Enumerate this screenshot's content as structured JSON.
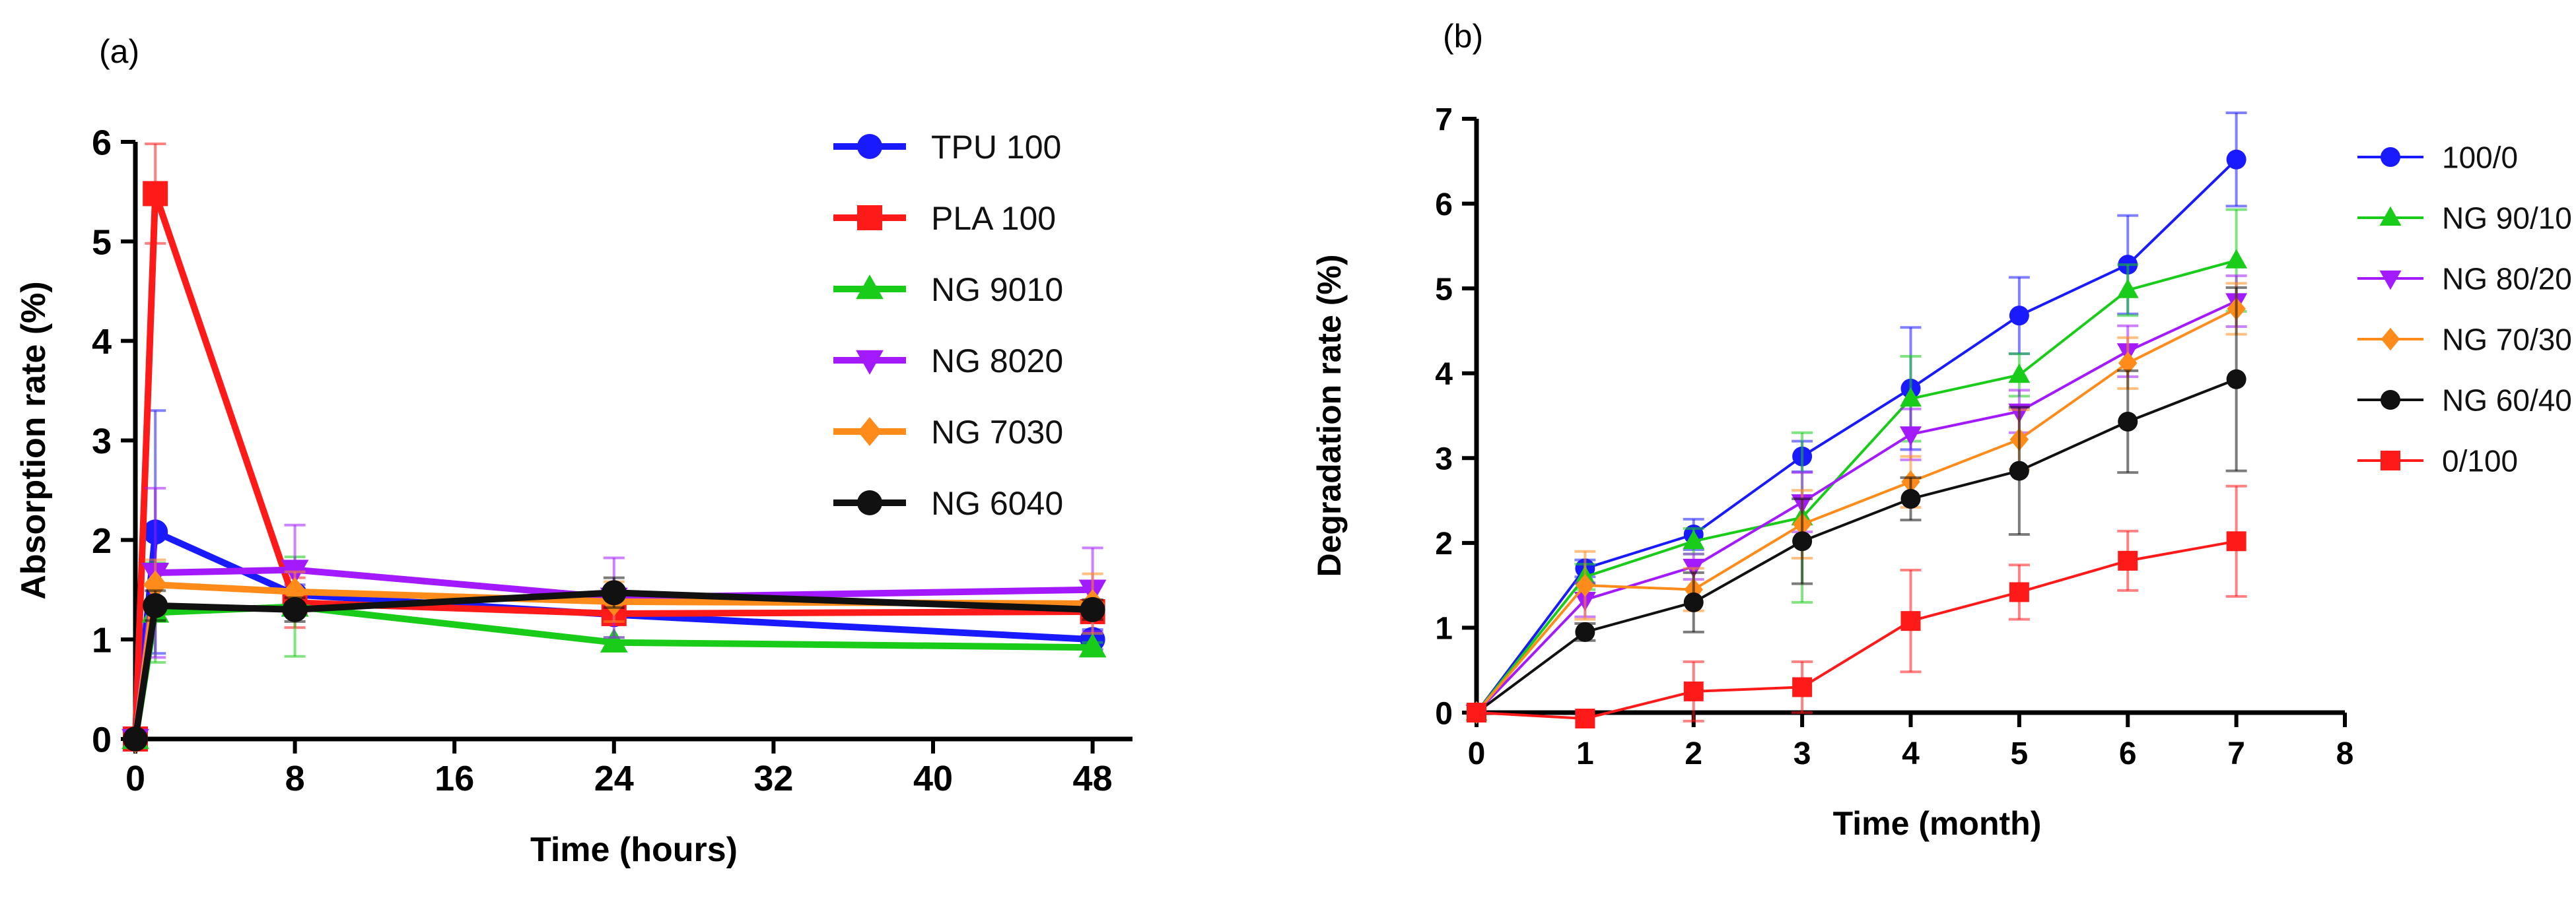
{
  "chart_data": [
    {
      "panel_label": "(a)",
      "type": "line",
      "title": "",
      "xlabel": "Time (hours)",
      "ylabel": "Absorption rate (%)",
      "xlim": [
        0,
        50
      ],
      "ylim": [
        0,
        6
      ],
      "xticks": [
        0,
        8,
        16,
        24,
        32,
        40,
        48
      ],
      "yticks": [
        0,
        1,
        2,
        3,
        4,
        5,
        6
      ],
      "x": [
        0,
        1,
        8,
        24,
        48
      ],
      "grid": false,
      "legend_position": "right",
      "series": [
        {
          "name": "TPU 100",
          "color": "#1a1aff",
          "marker": "circle",
          "values": [
            0,
            2.08,
            1.45,
            1.25,
            1.0
          ],
          "errors": [
            0,
            1.22,
            0.1,
            0.1,
            0.1
          ]
        },
        {
          "name": "PLA 100",
          "color": "#ff1a1a",
          "marker": "square",
          "values": [
            0,
            5.48,
            1.37,
            1.26,
            1.28
          ],
          "errors": [
            0,
            0.5,
            0.25,
            0.1,
            0.1
          ]
        },
        {
          "name": "NG 9010",
          "color": "#1acc1a",
          "marker": "triangle-up",
          "values": [
            0,
            1.27,
            1.33,
            0.97,
            0.92
          ],
          "errors": [
            0,
            0.5,
            0.5,
            0.05,
            0.05
          ]
        },
        {
          "name": "NG 8020",
          "color": "#a31aff",
          "marker": "triangle-down",
          "values": [
            0,
            1.67,
            1.7,
            1.42,
            1.5
          ],
          "errors": [
            0,
            0.85,
            0.45,
            0.4,
            0.42
          ]
        },
        {
          "name": "NG 7030",
          "color": "#ff8c1a",
          "marker": "diamond",
          "values": [
            0,
            1.55,
            1.48,
            1.38,
            1.36
          ],
          "errors": [
            0,
            0.25,
            0.2,
            0.2,
            0.3
          ]
        },
        {
          "name": "NG 6040",
          "color": "#111111",
          "marker": "circle",
          "values": [
            0,
            1.34,
            1.3,
            1.47,
            1.3
          ],
          "errors": [
            0,
            0.15,
            0.12,
            0.15,
            0.1
          ]
        }
      ]
    },
    {
      "panel_label": "(b)",
      "type": "line",
      "title": "",
      "xlabel": "Time (month)",
      "ylabel": "Degradation rate (%)",
      "xlim": [
        0,
        8
      ],
      "ylim": [
        0,
        7
      ],
      "xticks": [
        0,
        1,
        2,
        3,
        4,
        5,
        6,
        7,
        8
      ],
      "yticks": [
        0,
        1,
        2,
        3,
        4,
        5,
        6,
        7
      ],
      "x": [
        0,
        1,
        2,
        3,
        4,
        5,
        6,
        7
      ],
      "grid": false,
      "legend_position": "right",
      "series": [
        {
          "name": "100/0",
          "color": "#1a1aff",
          "marker": "circle",
          "values": [
            0,
            1.7,
            2.1,
            3.02,
            3.82,
            4.68,
            5.28,
            6.52
          ],
          "errors": [
            0,
            0.1,
            0.18,
            0.18,
            0.72,
            0.45,
            0.58,
            0.55
          ]
        },
        {
          "name": "NG 90/10",
          "color": "#1acc1a",
          "marker": "triangle-up",
          "values": [
            0,
            1.6,
            2.02,
            2.3,
            3.7,
            3.98,
            4.98,
            5.33
          ],
          "errors": [
            0,
            0.15,
            0.15,
            1.0,
            0.5,
            0.25,
            0.3,
            0.6
          ]
        },
        {
          "name": "NG 80/20",
          "color": "#a31aff",
          "marker": "triangle-down",
          "values": [
            0,
            1.33,
            1.72,
            2.48,
            3.28,
            3.55,
            4.26,
            4.85
          ],
          "errors": [
            0,
            0.2,
            0.15,
            0.35,
            0.3,
            0.25,
            0.3,
            0.3
          ]
        },
        {
          "name": "NG 70/30",
          "color": "#ff8c1a",
          "marker": "diamond",
          "values": [
            0,
            1.5,
            1.45,
            2.22,
            2.72,
            3.22,
            4.12,
            4.76
          ],
          "errors": [
            0,
            0.4,
            0.25,
            0.4,
            0.3,
            0.35,
            0.3,
            0.3
          ]
        },
        {
          "name": "NG 60/40",
          "color": "#111111",
          "marker": "circle",
          "values": [
            0,
            0.95,
            1.3,
            2.02,
            2.52,
            2.85,
            3.43,
            3.93
          ],
          "errors": [
            0,
            0.1,
            0.35,
            0.5,
            0.25,
            0.75,
            0.6,
            1.08
          ]
        },
        {
          "name": "0/100",
          "color": "#ff1a1a",
          "marker": "square",
          "values": [
            0,
            -0.07,
            0.25,
            0.3,
            1.08,
            1.42,
            1.79,
            2.02
          ],
          "errors": [
            0,
            0,
            0.35,
            0.3,
            0.6,
            0.32,
            0.35,
            0.65
          ]
        }
      ]
    }
  ]
}
